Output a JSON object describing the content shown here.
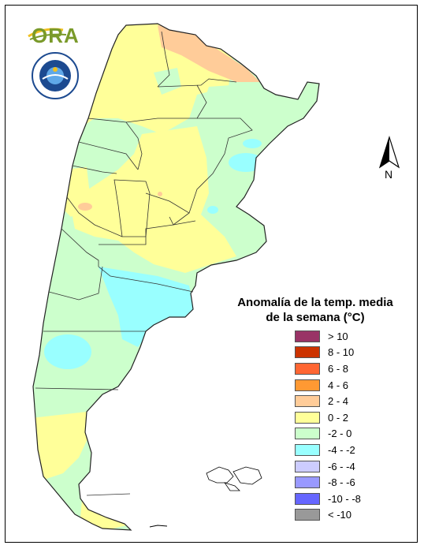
{
  "logos": {
    "ora": "ORA",
    "smn_icon": "servicio-meteorologico-nacional-seal"
  },
  "north_arrow": {
    "label": "N",
    "icon": "north-arrow-icon"
  },
  "legend": {
    "title_line1": "Anomalía de la temp. media",
    "title_line2": "de la semana (°C)",
    "items": [
      {
        "label": "> 10",
        "color": "#993366"
      },
      {
        "label": "8 - 10",
        "color": "#cc3300"
      },
      {
        "label": "6 - 8",
        "color": "#ff6633"
      },
      {
        "label": "4 - 6",
        "color": "#ff9933"
      },
      {
        "label": "2 - 4",
        "color": "#ffcc99"
      },
      {
        "label": "0 - 2",
        "color": "#ffff99"
      },
      {
        "label": "-2 - 0",
        "color": "#ccffcc"
      },
      {
        "label": "-4 - -2",
        "color": "#99ffff"
      },
      {
        "label": "-6 - -4",
        "color": "#ccccff"
      },
      {
        "label": "-8 - -6",
        "color": "#9999ff"
      },
      {
        "label": "-10 - -8",
        "color": "#6666ff"
      },
      {
        "label": "< -10",
        "color": "#999999"
      }
    ]
  },
  "map": {
    "country": "Argentina",
    "colors": {
      "yellow": "#ffff99",
      "green": "#ccffcc",
      "cyan": "#99ffff",
      "orange": "#ffcc99",
      "border": "#333333"
    }
  }
}
